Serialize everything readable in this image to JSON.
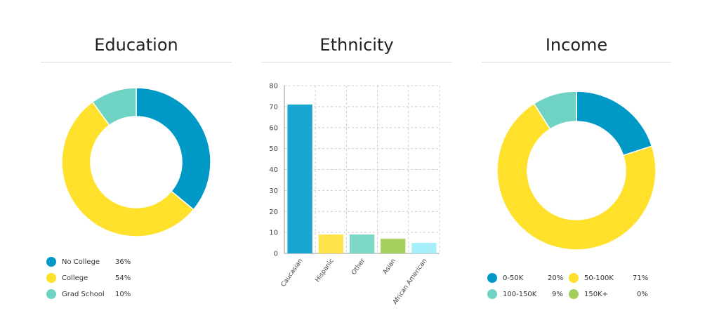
{
  "chart_data": [
    {
      "type": "pie",
      "title": "Education",
      "categories": [
        "No College",
        "College",
        "Grad School"
      ],
      "values": [
        36,
        54,
        10
      ],
      "value_labels": [
        "36%",
        "54%",
        "10%"
      ],
      "colors": [
        "#0099c6",
        "#ffe02a",
        "#6fd3c4"
      ],
      "donut": true,
      "legend": "bottom-left"
    },
    {
      "type": "bar",
      "title": "Ethnicity",
      "categories": [
        "Caucasian",
        "Hispanic",
        "Other",
        "Asian",
        "African American"
      ],
      "values": [
        71,
        9,
        9,
        7,
        5
      ],
      "colors": [
        "#1aa6cf",
        "#ffe34a",
        "#7dd8c8",
        "#a8d060",
        "#a6eef9"
      ],
      "ylim": [
        0,
        80
      ],
      "yticks": [
        "0",
        "10",
        "20",
        "30",
        "40",
        "50",
        "60",
        "70",
        "80"
      ],
      "xlabel": "",
      "ylabel": "",
      "grid": true
    },
    {
      "type": "pie",
      "title": "Income",
      "categories": [
        "0-50K",
        "50-100K",
        "100-150K",
        "150K+"
      ],
      "values": [
        20,
        71,
        9,
        0
      ],
      "value_labels": [
        "20%",
        "71%",
        "9%",
        "0%"
      ],
      "colors": [
        "#0099c6",
        "#ffe02a",
        "#6fd3c4",
        "#a4cc5c"
      ],
      "donut": true,
      "legend": "bottom"
    }
  ]
}
